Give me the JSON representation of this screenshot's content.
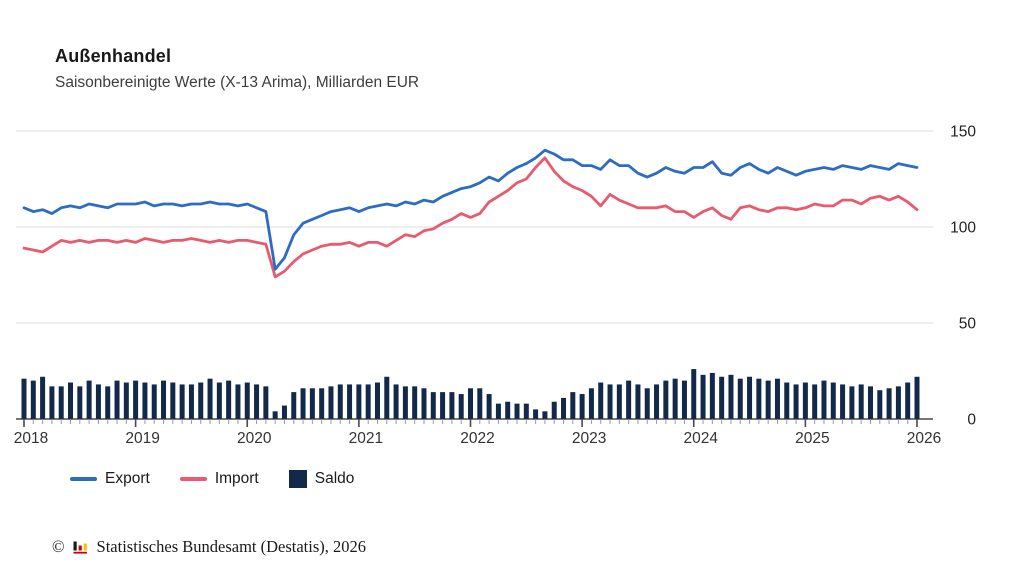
{
  "header": {
    "title": "Außenhandel",
    "subtitle": "Saisonbereinigte Werte (X-13 Arima), Milliarden EUR"
  },
  "footer": {
    "copyright_symbol": "©",
    "text": "Statistisches Bundesamt (Destatis), 2026",
    "logo_icon": "destatis-bars-icon",
    "logo_colors": {
      "bar1": "#1a1a1a",
      "bar2": "#cc0000",
      "bar3": "#f5c400",
      "baseline": "#cc0000"
    }
  },
  "colors": {
    "export_line": "#2d6cc3",
    "import_line": "#e85a6e",
    "saldo_bar": "#12294a",
    "gridline": "#e4e4e4",
    "axis": "#4a4a4a",
    "month_tick": "#9a9a9a",
    "axis_text": "#333333",
    "background": "#ffffff"
  },
  "chart_data": {
    "type": "line+bar",
    "title": "Außenhandel",
    "subtitle": "Saisonbereinigte Werte (X-13 Arima), Milliarden EUR",
    "unit": "Milliarden EUR",
    "x_monthly_range": {
      "start": "2018-01",
      "end": "2026-01",
      "n_points": 97
    },
    "x_tick_labels": [
      "2018",
      "2019",
      "2020",
      "2021",
      "2022",
      "2023",
      "2024",
      "2025",
      "2026"
    ],
    "y_ticks": [
      0,
      50,
      100,
      150
    ],
    "ylim": [
      0,
      155
    ],
    "grid": true,
    "legend_position": "bottom",
    "series": [
      {
        "name": "Export",
        "type": "line",
        "color": "#2d6cc3",
        "values": [
          110,
          108,
          109,
          107,
          110,
          111,
          110,
          112,
          111,
          110,
          112,
          112,
          112,
          113,
          111,
          112,
          112,
          111,
          112,
          112,
          113,
          112,
          112,
          111,
          112,
          110,
          108,
          78,
          84,
          96,
          102,
          104,
          106,
          108,
          109,
          110,
          108,
          110,
          111,
          112,
          111,
          113,
          112,
          114,
          113,
          116,
          118,
          120,
          121,
          123,
          126,
          124,
          128,
          131,
          133,
          136,
          140,
          138,
          135,
          135,
          132,
          132,
          130,
          135,
          132,
          132,
          128,
          126,
          128,
          131,
          129,
          128,
          131,
          131,
          134,
          128,
          127,
          131,
          133,
          130,
          128,
          131,
          129,
          127,
          129,
          130,
          131,
          130,
          132,
          131,
          130,
          132,
          131,
          130,
          133,
          132,
          131
        ]
      },
      {
        "name": "Import",
        "type": "line",
        "color": "#e85a6e",
        "values": [
          89,
          88,
          87,
          90,
          93,
          92,
          93,
          92,
          93,
          93,
          92,
          93,
          92,
          94,
          93,
          92,
          93,
          93,
          94,
          93,
          92,
          93,
          92,
          93,
          93,
          92,
          91,
          74,
          77,
          82,
          86,
          88,
          90,
          91,
          91,
          92,
          90,
          92,
          92,
          90,
          93,
          96,
          95,
          98,
          99,
          102,
          104,
          107,
          105,
          107,
          113,
          116,
          119,
          123,
          125,
          131,
          136,
          129,
          124,
          121,
          119,
          116,
          111,
          117,
          114,
          112,
          110,
          110,
          110,
          111,
          108,
          108,
          105,
          108,
          110,
          106,
          104,
          110,
          111,
          109,
          108,
          110,
          110,
          109,
          110,
          112,
          111,
          111,
          114,
          114,
          112,
          115,
          116,
          114,
          116,
          113,
          109
        ]
      },
      {
        "name": "Saldo",
        "type": "bar",
        "color": "#12294a",
        "values": [
          21,
          20,
          22,
          17,
          17,
          19,
          17,
          20,
          18,
          17,
          20,
          19,
          20,
          19,
          18,
          20,
          19,
          18,
          18,
          19,
          21,
          19,
          20,
          18,
          19,
          18,
          17,
          4,
          7,
          14,
          16,
          16,
          16,
          17,
          18,
          18,
          18,
          18,
          19,
          22,
          18,
          17,
          17,
          16,
          14,
          14,
          14,
          13,
          16,
          16,
          13,
          8,
          9,
          8,
          8,
          5,
          4,
          9,
          11,
          14,
          13,
          16,
          19,
          18,
          18,
          20,
          18,
          16,
          18,
          20,
          21,
          20,
          26,
          23,
          24,
          22,
          23,
          21,
          22,
          21,
          20,
          21,
          19,
          18,
          19,
          18,
          20,
          19,
          18,
          17,
          18,
          17,
          15,
          16,
          17,
          19,
          22
        ]
      }
    ]
  }
}
